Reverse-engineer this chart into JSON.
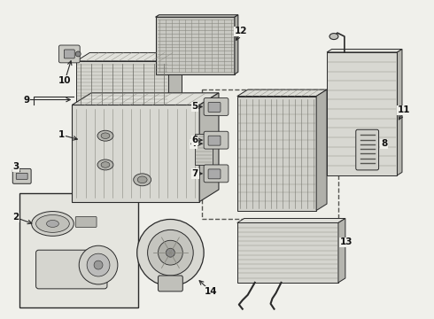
{
  "bg_color": "#f0f0eb",
  "lc": "#2a2a2a",
  "fc_light": "#e8e8e2",
  "fc_mid": "#d0d0ca",
  "fc_dark": "#b8b8b2",
  "label_fs": 7.5
}
